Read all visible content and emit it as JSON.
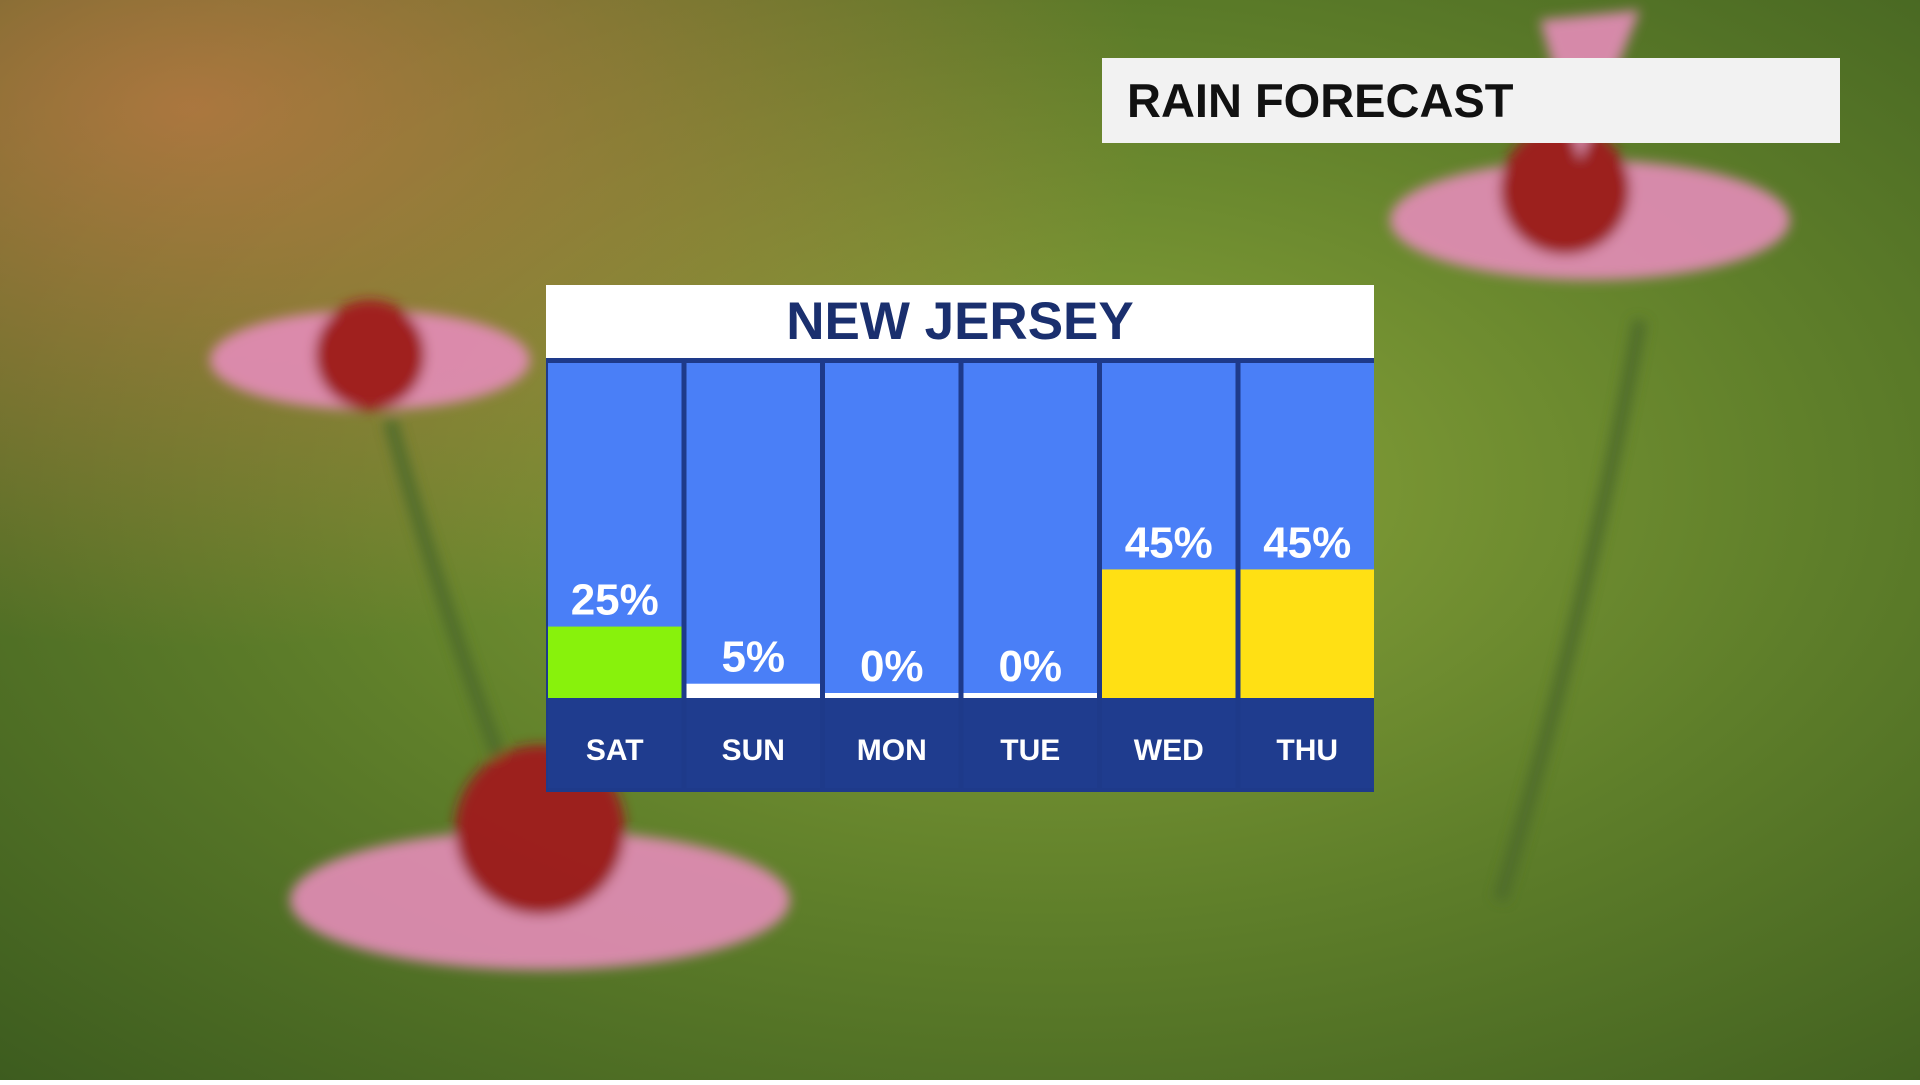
{
  "header": {
    "title": "RAIN FORECAST"
  },
  "chart_data": {
    "type": "bar",
    "title": "NEW JERSEY",
    "categories": [
      "SAT",
      "SUN",
      "MON",
      "TUE",
      "WED",
      "THU"
    ],
    "values": [
      25,
      5,
      0,
      0,
      45,
      45
    ],
    "value_labels": [
      "25%",
      "5%",
      "0%",
      "0%",
      "45%",
      "45%"
    ],
    "colors": [
      "#88f20c",
      "#ffffff",
      "#ffffff",
      "#ffffff",
      "#ffe014",
      "#ffe014"
    ]
  }
}
